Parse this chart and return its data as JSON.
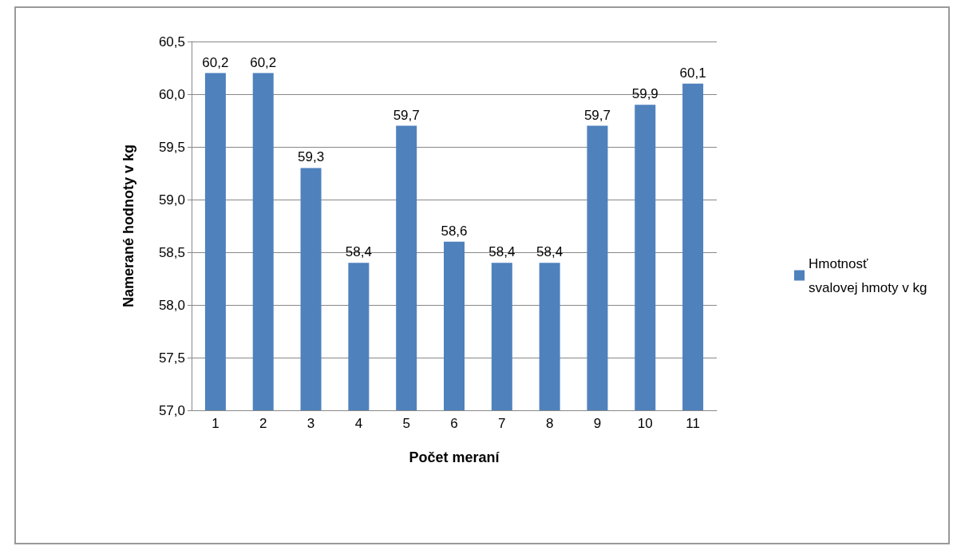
{
  "chart_data": {
    "type": "bar",
    "xlabel": "Počet meraní",
    "ylabel": "Namerané hodnoty v kg",
    "categories": [
      "1",
      "2",
      "3",
      "4",
      "5",
      "6",
      "7",
      "8",
      "9",
      "10",
      "11"
    ],
    "series": [
      {
        "name": "Hmotnosť svalovej hmoty v kg",
        "color": "#4f81bd",
        "values": [
          60.2,
          60.2,
          59.3,
          58.4,
          59.7,
          58.6,
          58.4,
          58.4,
          59.7,
          59.9,
          60.1
        ],
        "value_labels": [
          "60,2",
          "60,2",
          "59,3",
          "58,4",
          "59,7",
          "58,6",
          "58,4",
          "58,4",
          "59,7",
          "59,9",
          "60,1"
        ]
      }
    ],
    "ylim": [
      57,
      60.5
    ],
    "yticks": [
      {
        "value": 57,
        "label": "57,0"
      },
      {
        "value": 57.5,
        "label": "57,5"
      },
      {
        "value": 58,
        "label": "58,0"
      },
      {
        "value": 58.5,
        "label": "58,5"
      },
      {
        "value": 59,
        "label": "59,0"
      },
      {
        "value": 59.5,
        "label": "59,5"
      },
      {
        "value": 60,
        "label": "60,0"
      },
      {
        "value": 60.5,
        "label": "60,5"
      }
    ],
    "grid": "y",
    "legend": "right"
  }
}
